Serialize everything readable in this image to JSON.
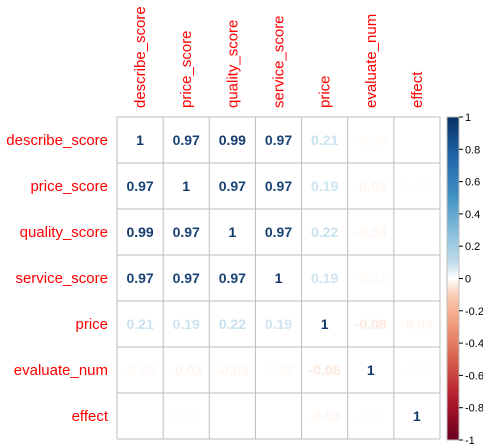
{
  "chart_data": {
    "type": "heatmap",
    "variables": [
      "describe_score",
      "price_score",
      "quality_score",
      "service_score",
      "price",
      "evaluate_num",
      "effect"
    ],
    "matrix": [
      [
        1,
        0.97,
        0.99,
        0.97,
        0.21,
        -0.02,
        0.0
      ],
      [
        0.97,
        1,
        0.97,
        0.97,
        0.19,
        -0.03,
        0.01
      ],
      [
        0.99,
        0.97,
        1,
        0.97,
        0.22,
        -0.03,
        0.0
      ],
      [
        0.97,
        0.97,
        0.97,
        1,
        0.19,
        -0.02,
        0.0
      ],
      [
        0.21,
        0.19,
        0.22,
        0.19,
        1,
        -0.08,
        -0.03
      ],
      [
        -0.02,
        -0.03,
        -0.03,
        -0.02,
        -0.08,
        1,
        -0.01
      ],
      [
        0.0,
        0.01,
        0.0,
        0.0,
        -0.03,
        -0.01,
        1
      ]
    ],
    "labels": [
      [
        "1",
        "0.97",
        "0.99",
        "0.97",
        "0.21",
        "-0.02",
        "0"
      ],
      [
        "0.97",
        "1",
        "0.97",
        "0.97",
        "0.19",
        "-0.03",
        "0.01"
      ],
      [
        "0.99",
        "0.97",
        "1",
        "0.97",
        "0.22",
        "-0.03",
        "0"
      ],
      [
        "0.97",
        "0.97",
        "0.97",
        "1",
        "0.19",
        "-0.02",
        "0"
      ],
      [
        "0.21",
        "0.19",
        "0.22",
        "0.19",
        "1",
        "-0.08",
        "-0.03"
      ],
      [
        "-0.02",
        "-0.03",
        "-0.03",
        "-0.02",
        "-0.08",
        "1",
        "-0.01"
      ],
      [
        "0",
        "0.01",
        "0",
        "0",
        "-0.03",
        "-0.01",
        "1"
      ]
    ],
    "colorbar": {
      "range": [
        -1,
        1
      ],
      "ticks": [
        "1",
        "0.8",
        "0.6",
        "0.4",
        "0.2",
        "0",
        "-0.2",
        "-0.4",
        "-0.6",
        "-0.8",
        "-1"
      ]
    },
    "colors": {
      "negative": "#67001f",
      "neutral": "#ffffff",
      "positive": "#053061",
      "labels": "#ff0000",
      "grid": "#bebebe"
    }
  }
}
